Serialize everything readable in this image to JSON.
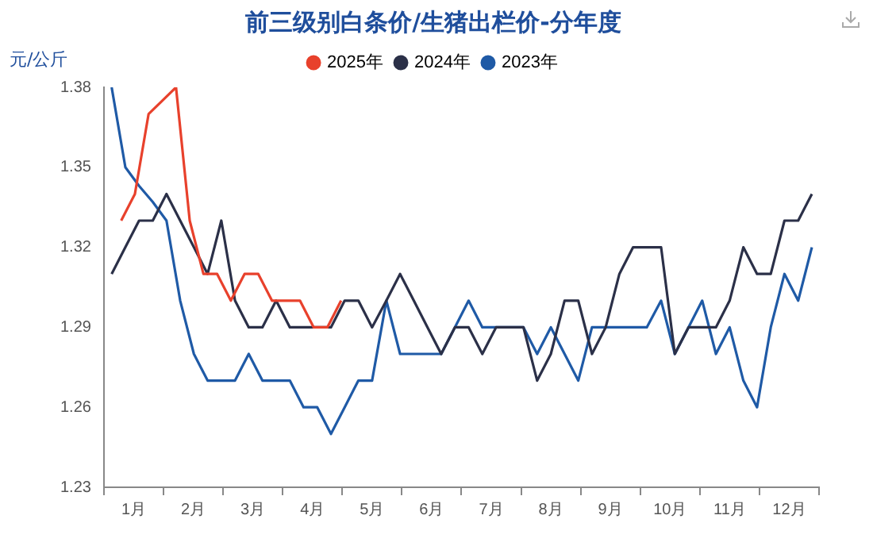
{
  "chart_data": {
    "type": "line",
    "title": "前三级别白条价/生猪出栏价-分年度",
    "ylabel": "元/公斤",
    "xlim": [
      0,
      12
    ],
    "xticks": [
      {
        "value": 0,
        "label": null
      },
      {
        "value": 0.5,
        "label": "1月"
      },
      {
        "value": 1,
        "label": null
      },
      {
        "value": 1.5,
        "label": "2月"
      },
      {
        "value": 2,
        "label": null
      },
      {
        "value": 2.5,
        "label": "3月"
      },
      {
        "value": 3,
        "label": null
      },
      {
        "value": 3.5,
        "label": "4月"
      },
      {
        "value": 4,
        "label": null
      },
      {
        "value": 4.5,
        "label": "5月"
      },
      {
        "value": 5,
        "label": null
      },
      {
        "value": 5.5,
        "label": "6月"
      },
      {
        "value": 6,
        "label": null
      },
      {
        "value": 6.5,
        "label": "7月"
      },
      {
        "value": 7,
        "label": null
      },
      {
        "value": 7.5,
        "label": "8月"
      },
      {
        "value": 8,
        "label": null
      },
      {
        "value": 8.5,
        "label": "9月"
      },
      {
        "value": 9,
        "label": null
      },
      {
        "value": 9.5,
        "label": "10月"
      },
      {
        "value": 10,
        "label": null
      },
      {
        "value": 10.5,
        "label": "11月"
      },
      {
        "value": 11,
        "label": null
      },
      {
        "value": 11.5,
        "label": "12月"
      },
      {
        "value": 12,
        "label": null
      }
    ],
    "ylim": [
      1.23,
      1.38
    ],
    "yticks": [
      1.23,
      1.26,
      1.29,
      1.32,
      1.35,
      1.38
    ],
    "grid": false,
    "legend": "top",
    "marker": "none",
    "line_style": "solid",
    "series": [
      {
        "name": "2025年",
        "color": "#e8412c",
        "x": [
          0.29,
          0.52,
          0.75,
          0.98,
          1.21,
          1.44,
          1.67,
          1.9,
          2.13,
          2.36,
          2.59,
          2.82,
          3.06,
          3.29,
          3.52,
          3.75,
          3.98
        ],
        "values": [
          1.33,
          1.34,
          1.37,
          1.375,
          1.38,
          1.33,
          1.31,
          1.31,
          1.3,
          1.31,
          1.31,
          1.3,
          1.3,
          1.3,
          1.29,
          1.29,
          1.3
        ]
      },
      {
        "name": "2024年",
        "color": "#2b3048",
        "x": [
          0.13,
          0.36,
          0.59,
          0.82,
          1.05,
          1.28,
          1.51,
          1.74,
          1.97,
          2.2,
          2.43,
          2.66,
          2.89,
          3.12,
          3.35,
          3.58,
          3.81,
          4.04,
          4.27,
          4.5,
          4.74,
          4.97,
          5.2,
          5.43,
          5.66,
          5.89,
          6.12,
          6.35,
          6.58,
          6.81,
          7.04,
          7.27,
          7.5,
          7.73,
          7.96,
          8.19,
          8.42,
          8.65,
          8.88,
          9.11,
          9.35,
          9.58,
          9.81,
          10.04,
          10.27,
          10.5,
          10.73,
          10.96,
          11.19,
          11.42,
          11.65,
          11.88
        ],
        "values": [
          1.31,
          1.32,
          1.33,
          1.33,
          1.34,
          1.33,
          1.32,
          1.31,
          1.33,
          1.3,
          1.29,
          1.29,
          1.3,
          1.29,
          1.29,
          1.29,
          1.29,
          1.3,
          1.3,
          1.29,
          1.3,
          1.31,
          1.3,
          1.29,
          1.28,
          1.29,
          1.29,
          1.28,
          1.29,
          1.29,
          1.29,
          1.27,
          1.28,
          1.3,
          1.3,
          1.28,
          1.29,
          1.31,
          1.32,
          1.32,
          1.32,
          1.28,
          1.29,
          1.29,
          1.29,
          1.3,
          1.32,
          1.31,
          1.31,
          1.33,
          1.33,
          1.34
        ]
      },
      {
        "name": "2023年",
        "color": "#1f5aa6",
        "x": [
          0.13,
          0.36,
          0.59,
          0.82,
          1.05,
          1.28,
          1.51,
          1.74,
          1.97,
          2.2,
          2.43,
          2.66,
          2.89,
          3.12,
          3.35,
          3.58,
          3.81,
          4.04,
          4.27,
          4.5,
          4.74,
          4.97,
          5.2,
          5.43,
          5.66,
          5.89,
          6.12,
          6.35,
          6.58,
          6.81,
          7.04,
          7.27,
          7.5,
          7.73,
          7.96,
          8.19,
          8.42,
          8.65,
          8.88,
          9.11,
          9.35,
          9.58,
          9.81,
          10.04,
          10.27,
          10.5,
          10.73,
          10.96,
          11.19,
          11.42,
          11.65,
          11.88
        ],
        "values": [
          1.38,
          1.35,
          1.343,
          1.337,
          1.33,
          1.3,
          1.28,
          1.27,
          1.27,
          1.27,
          1.28,
          1.27,
          1.27,
          1.27,
          1.26,
          1.26,
          1.25,
          1.26,
          1.27,
          1.27,
          1.3,
          1.28,
          1.28,
          1.28,
          1.28,
          1.29,
          1.3,
          1.29,
          1.29,
          1.29,
          1.29,
          1.28,
          1.29,
          1.28,
          1.27,
          1.29,
          1.29,
          1.29,
          1.29,
          1.29,
          1.3,
          1.28,
          1.29,
          1.3,
          1.28,
          1.29,
          1.27,
          1.26,
          1.29,
          1.31,
          1.3,
          1.32
        ]
      }
    ]
  }
}
